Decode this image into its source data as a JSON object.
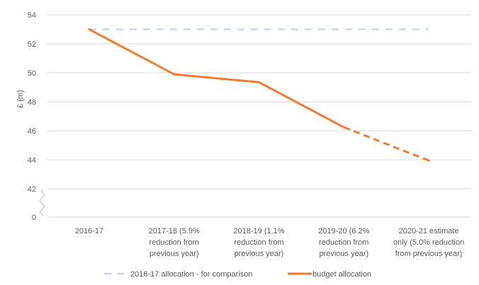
{
  "chart_data": {
    "type": "line",
    "title": "",
    "xlabel": "",
    "ylabel": "£ (m)",
    "y_axis_break": true,
    "y_ticks": [
      0,
      42,
      44,
      46,
      48,
      50,
      52,
      54
    ],
    "y_tick_labels": [
      "0",
      "42",
      "44",
      "46",
      "48",
      "50",
      "52",
      "54"
    ],
    "categories": [
      [
        "2016-17"
      ],
      [
        "2017-18  (5.9%",
        "reduction from",
        "previous year)"
      ],
      [
        "2018-19 (1.1%",
        "reduction from",
        "previous year)"
      ],
      [
        "2019-20 (6.2%",
        "reduction from",
        "previous year)"
      ],
      [
        "2020-21 estimate",
        "only (5.0% reduction",
        "from previous year)"
      ]
    ],
    "series": [
      {
        "name": "2016-17 allocation - for comparison",
        "values": [
          53.0,
          53.0,
          53.0,
          53.0,
          53.0
        ],
        "color": "#c9d9ea",
        "style": "dashed"
      },
      {
        "name": "budget allocation",
        "values": [
          53.0,
          49.9,
          49.35,
          46.25,
          43.95
        ],
        "color": "#ed7d31",
        "style": "solid",
        "dashed_last_segment": true
      }
    ],
    "grid": true,
    "legend_position": "bottom"
  }
}
